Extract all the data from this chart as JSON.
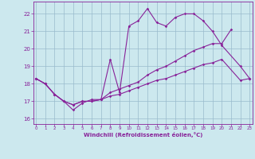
{
  "bg_color": "#cce8ee",
  "grid_color": "#99bbcc",
  "line_color": "#882299",
  "xlim": [
    -0.3,
    23.3
  ],
  "ylim": [
    15.7,
    22.7
  ],
  "xtick_vals": [
    0,
    1,
    2,
    3,
    4,
    5,
    6,
    7,
    8,
    9,
    10,
    11,
    12,
    13,
    14,
    15,
    16,
    17,
    18,
    19,
    20,
    21,
    22,
    23
  ],
  "ytick_vals": [
    16,
    17,
    18,
    19,
    20,
    21,
    22
  ],
  "xlabel": "Windchill (Refroidissement éolien,°C)",
  "line1_x": [
    0,
    1,
    2,
    3,
    4,
    5,
    6,
    7,
    8,
    9,
    10,
    11,
    12,
    13,
    14,
    15,
    16,
    17,
    18,
    19,
    20,
    22,
    23
  ],
  "line1_y": [
    18.3,
    18.0,
    17.4,
    17.0,
    16.8,
    17.0,
    17.0,
    17.1,
    19.4,
    17.5,
    21.3,
    21.6,
    22.3,
    21.5,
    21.3,
    21.8,
    22.0,
    22.0,
    21.6,
    21.0,
    20.2,
    19.0,
    18.3
  ],
  "line2_x": [
    0,
    1,
    2,
    3,
    4,
    5,
    6,
    7,
    8,
    9,
    10,
    11,
    12,
    13,
    14,
    15,
    16,
    17,
    18,
    19,
    20,
    21,
    22,
    23
  ],
  "line2_y": [
    18.3,
    18.0,
    17.4,
    17.0,
    16.8,
    17.0,
    17.0,
    17.1,
    17.5,
    17.7,
    17.9,
    18.1,
    18.5,
    18.8,
    19.0,
    19.3,
    19.6,
    19.9,
    20.1,
    20.3,
    20.3,
    21.1,
    null,
    18.3
  ],
  "line3_x": [
    0,
    1,
    2,
    3,
    4,
    5,
    6,
    7,
    8,
    9,
    10,
    11,
    12,
    13,
    14,
    15,
    16,
    17,
    18,
    19,
    20,
    22,
    23
  ],
  "line3_y": [
    18.3,
    18.0,
    17.4,
    17.0,
    16.5,
    16.9,
    17.1,
    17.1,
    17.3,
    17.4,
    17.6,
    17.8,
    18.0,
    18.2,
    18.3,
    18.5,
    18.7,
    18.9,
    19.1,
    19.2,
    19.4,
    18.2,
    18.3
  ]
}
